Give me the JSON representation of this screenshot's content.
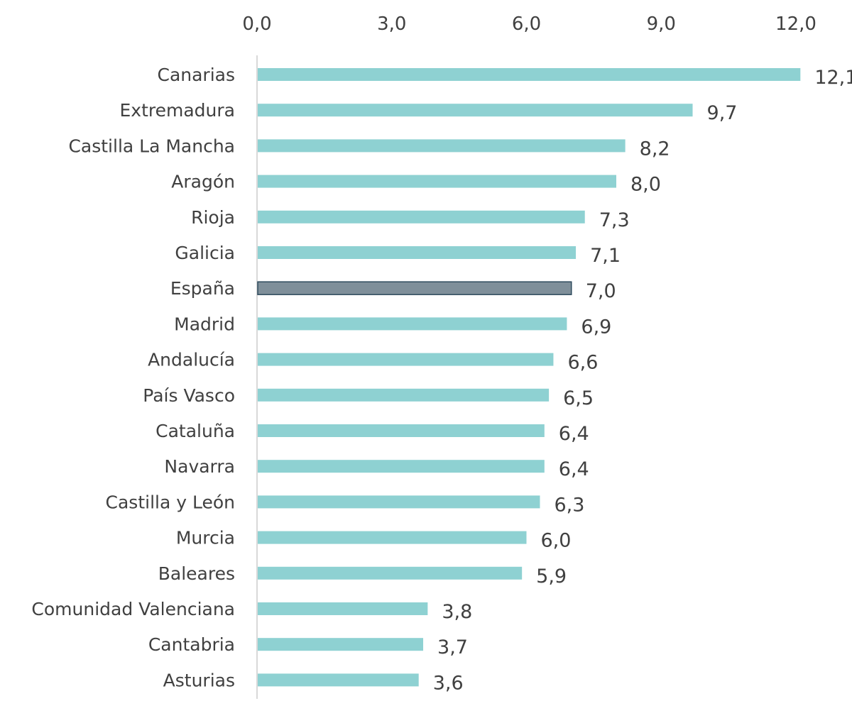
{
  "chart_data": {
    "type": "bar",
    "orientation": "horizontal",
    "title": "",
    "xlabel": "",
    "ylabel": "",
    "xlim": [
      0,
      12
    ],
    "x_ticks": [
      0,
      3,
      6,
      9,
      12
    ],
    "x_tick_labels": [
      "0,0",
      "3,0",
      "6,0",
      "9,0",
      "12,0"
    ],
    "x_axis_position": "top",
    "grid": false,
    "legend": "none",
    "categories": [
      "Canarias",
      "Extremadura",
      "Castilla La Mancha",
      "Aragón",
      "Rioja",
      "Galicia",
      "España",
      "Madrid",
      "Andalucía",
      "País Vasco",
      "Cataluña",
      "Navarra",
      "Castilla y León",
      "Murcia",
      "Baleares",
      "Comunidad Valenciana",
      "Cantabria",
      "Asturias"
    ],
    "values": [
      12.1,
      9.7,
      8.2,
      8.0,
      7.3,
      7.1,
      7.0,
      6.9,
      6.6,
      6.5,
      6.4,
      6.4,
      6.3,
      6.0,
      5.9,
      3.8,
      3.7,
      3.6
    ],
    "value_labels": [
      "12,1",
      "9,7",
      "8,2",
      "8,0",
      "7,3",
      "7,1",
      "7,0",
      "6,9",
      "6,6",
      "6,5",
      "6,4",
      "6,4",
      "6,3",
      "6,0",
      "5,9",
      "3,8",
      "3,7",
      "3,6"
    ],
    "highlight_category": "España",
    "colors": {
      "bar": "#8ed1d2",
      "highlight_bar": "#7f8f9a",
      "highlight_border": "#2f4b5e",
      "axis_line": "#d9d9d9",
      "text": "#404040"
    }
  }
}
